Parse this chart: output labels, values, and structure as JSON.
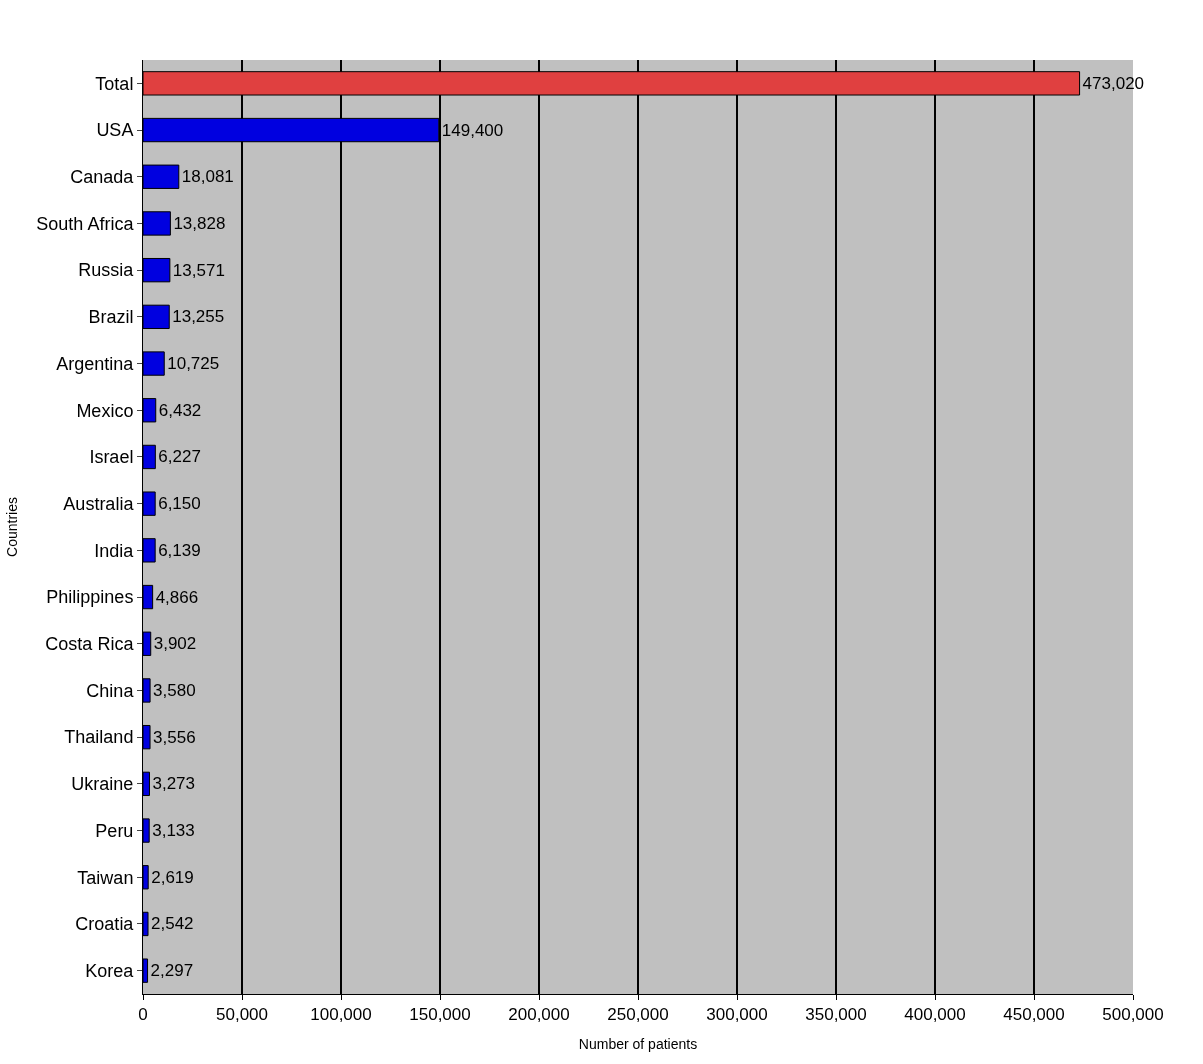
{
  "chart_data": {
    "type": "bar",
    "orientation": "horizontal",
    "xlabel": "Number of patients",
    "ylabel": "Countries",
    "categories": [
      "Total",
      "USA",
      "Canada",
      "South Africa",
      "Russia",
      "Brazil",
      "Argentina",
      "Mexico",
      "Israel",
      "Australia",
      "India",
      "Philippines",
      "Costa Rica",
      "China",
      "Thailand",
      "Ukraine",
      "Peru",
      "Taiwan",
      "Croatia",
      "Korea"
    ],
    "values": [
      473020,
      149400,
      18081,
      13828,
      13571,
      13255,
      10725,
      6432,
      6227,
      6150,
      6139,
      4866,
      3902,
      3580,
      3556,
      3273,
      3133,
      2619,
      2542,
      2297
    ],
    "colors": [
      "#e04040",
      "#0000e0",
      "#0000e0",
      "#0000e0",
      "#0000e0",
      "#0000e0",
      "#0000e0",
      "#0000e0",
      "#0000e0",
      "#0000e0",
      "#0000e0",
      "#0000e0",
      "#0000e0",
      "#0000e0",
      "#0000e0",
      "#0000e0",
      "#0000e0",
      "#0000e0",
      "#0000e0",
      "#0000e0"
    ],
    "value_labels": [
      "473,020",
      "149,400",
      "18,081",
      "13,828",
      "13,571",
      "13,255",
      "10,725",
      "6,432",
      "6,227",
      "6,150",
      "6,139",
      "4,866",
      "3,902",
      "3,580",
      "3,556",
      "3,273",
      "3,133",
      "2,619",
      "2,542",
      "2,297"
    ],
    "xlim": [
      0,
      500000
    ],
    "xticks": [
      0,
      {
        "value": 50000,
        "label": "50,000"
      },
      {
        "value": 100000,
        "label": "100,000"
      },
      {
        "value": 150000,
        "label": "150,000"
      },
      {
        "value": 200000,
        "label": "200,000"
      },
      {
        "value": 250000,
        "label": "250,000"
      },
      {
        "value": 300000,
        "label": "300,000"
      },
      {
        "value": 350000,
        "label": "350,000"
      },
      {
        "value": 400000,
        "label": "400,000"
      },
      {
        "value": 450000,
        "label": "450,000"
      },
      {
        "value": 500000,
        "label": "500,000"
      }
    ],
    "grid": "x",
    "legend": false
  }
}
